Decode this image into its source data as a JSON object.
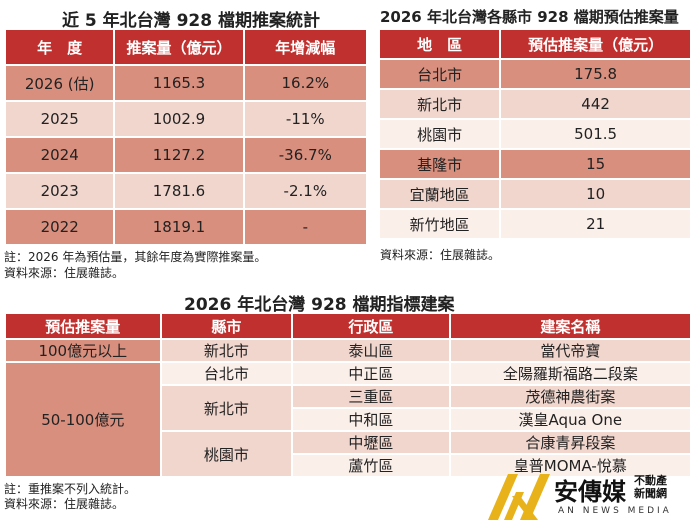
{
  "left": {
    "title": "近 5 年北台灣 928 檔期推案統計",
    "headers": [
      "年　度",
      "推案量（億元）",
      "年增減幅"
    ],
    "rows": [
      [
        "2026 (估)",
        "1165.3",
        "16.2%"
      ],
      [
        "2025",
        "1002.9",
        "-11%"
      ],
      [
        "2024",
        "1127.2",
        "-36.7%"
      ],
      [
        "2023",
        "1781.6",
        "-2.1%"
      ],
      [
        "2022",
        "1819.1",
        "-"
      ]
    ],
    "note1": "註：2026 年為預估量，其餘年度為實際推案量。",
    "note2": "資料來源：住展雜誌。"
  },
  "right": {
    "title": "2026 年北台灣各縣市 928 檔期預估推案量",
    "headers": [
      "地　區",
      "預估推案量（億元）"
    ],
    "rows": [
      [
        "台北市",
        "175.8"
      ],
      [
        "新北市",
        "442"
      ],
      [
        "桃園市",
        "501.5"
      ],
      [
        "基隆市",
        "15"
      ],
      [
        "宜蘭地區",
        "10"
      ],
      [
        "新竹地區",
        "21"
      ]
    ],
    "note": "資料來源：住展雜誌。"
  },
  "bottom": {
    "title": "2026 年北台灣 928 檔期指標建案",
    "headers": [
      "預估推案量",
      "縣市",
      "行政區",
      "建案名稱"
    ],
    "tier1": "100億元以上",
    "tier2": "50-100億元",
    "city_newtaipei_1": "新北市",
    "city_taipei": "台北市",
    "city_newtaipei_2": "新北市",
    "city_taoyuan": "桃園市",
    "rows": [
      [
        "泰山區",
        "當代帝寶"
      ],
      [
        "中正區",
        "全陽羅斯福路二段案"
      ],
      [
        "三重區",
        "茂德神農街案"
      ],
      [
        "中和區",
        "漢皇Aqua One"
      ],
      [
        "中壢區",
        "合康青昇段案"
      ],
      [
        "蘆竹區",
        "皇普MOMA-悅慕"
      ]
    ],
    "note1": "註：重推案不列入統計。",
    "note2": "資料來源：住展雜誌。"
  },
  "logo": {
    "name": "安傳媒",
    "sub1": "不動產",
    "sub2": "新聞網",
    "en": "AN NEWS MEDIA"
  }
}
